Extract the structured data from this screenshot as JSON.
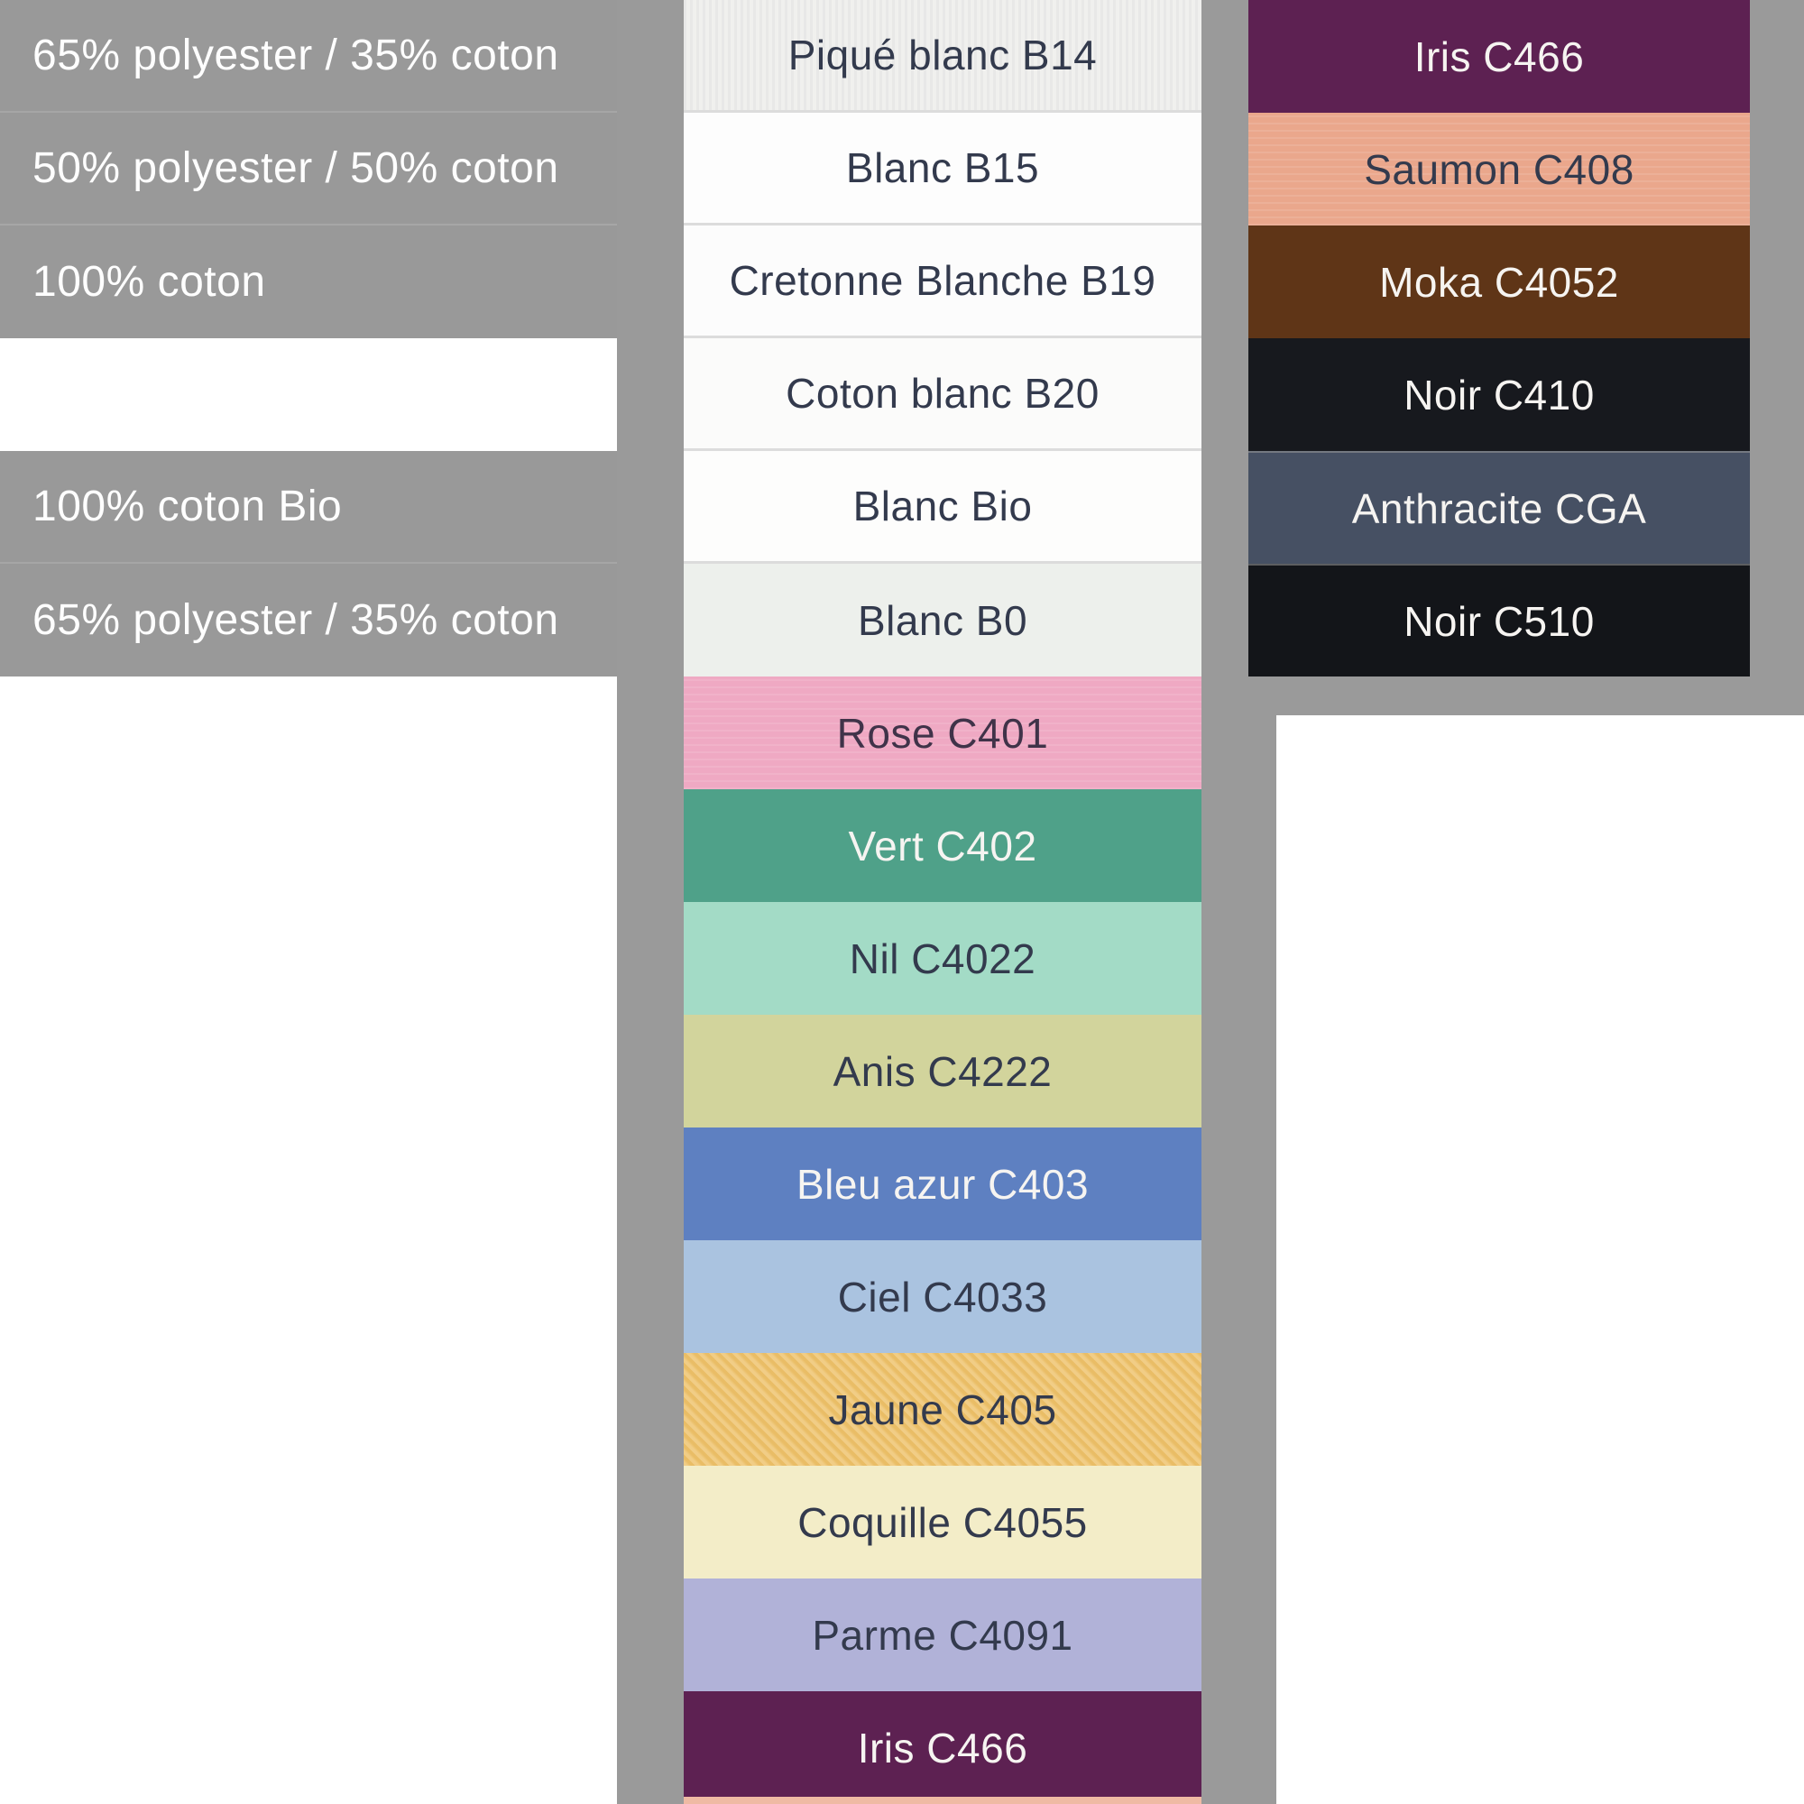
{
  "page": {
    "background": "#9a9a9a"
  },
  "composition_panel": {
    "background": "#999999",
    "text_color": "#fefefe",
    "rows": [
      {
        "label": "65% polyester / 35% coton"
      },
      {
        "label": "50% polyester / 50% coton"
      },
      {
        "label": "100% coton"
      },
      {
        "label": ""
      },
      {
        "label": "100% coton Bio"
      },
      {
        "label": "65% polyester / 35% coton"
      }
    ]
  },
  "main_swatches": [
    {
      "label": "Piqué blanc B14",
      "bg": "#f0f0ee",
      "text_color": "#333a4d"
    },
    {
      "label": "Blanc B15",
      "bg": "#fdfdfd",
      "text_color": "#333a4d"
    },
    {
      "label": "Cretonne Blanche B19",
      "bg": "#fcfcfc",
      "text_color": "#333a4d"
    },
    {
      "label": "Coton blanc B20",
      "bg": "#fbfbfa",
      "text_color": "#333a4d"
    },
    {
      "label": "Blanc Bio",
      "bg": "#fdfdfc",
      "text_color": "#333a4d"
    },
    {
      "label": "Blanc B0",
      "bg": "#edf0ec",
      "text_color": "#333a4d"
    },
    {
      "label": "Rose C401",
      "bg": "#efa9c3",
      "text_color": "#403349"
    },
    {
      "label": "Vert C402",
      "bg": "#4fa189",
      "text_color": "#f6f4f1"
    },
    {
      "label": "Nil C4022",
      "bg": "#a3dbc6",
      "text_color": "#333a4d"
    },
    {
      "label": "Anis C4222",
      "bg": "#d2d49c",
      "text_color": "#333a4d"
    },
    {
      "label": "Bleu azur C403",
      "bg": "#5e80c1",
      "text_color": "#f6f4f1"
    },
    {
      "label": "Ciel C4033",
      "bg": "#aac3e0",
      "text_color": "#333a4d"
    },
    {
      "label": "Jaune C405",
      "bg": "#eec168",
      "text_color": "#333a4d"
    },
    {
      "label": "Coquille C4055",
      "bg": "#f3edc8",
      "text_color": "#333a4d"
    },
    {
      "label": "Parme C4091",
      "bg": "#b1b2d8",
      "text_color": "#333a4d"
    },
    {
      "label": "Iris C466",
      "bg": "#5d2152",
      "text_color": "#f6f4f1"
    }
  ],
  "main_bottom_sliver_color": "#efbaa4",
  "right_swatches": [
    {
      "label": "Iris C466",
      "bg": "#5d2152",
      "text_color": "#f6f4f1"
    },
    {
      "label": "Saumon C408",
      "bg": "#eaa78c",
      "text_color": "#333a4d"
    },
    {
      "label": "Moka C4052",
      "bg": "#5f3517",
      "text_color": "#f6f4f1"
    },
    {
      "label": "Noir C410",
      "bg": "#17191e",
      "text_color": "#f6f4f1"
    },
    {
      "label": "Anthracite CGA",
      "bg": "#465063",
      "text_color": "#f6f4f1"
    },
    {
      "label": "Noir C510",
      "bg": "#131519",
      "text_color": "#f6f4f1"
    }
  ]
}
